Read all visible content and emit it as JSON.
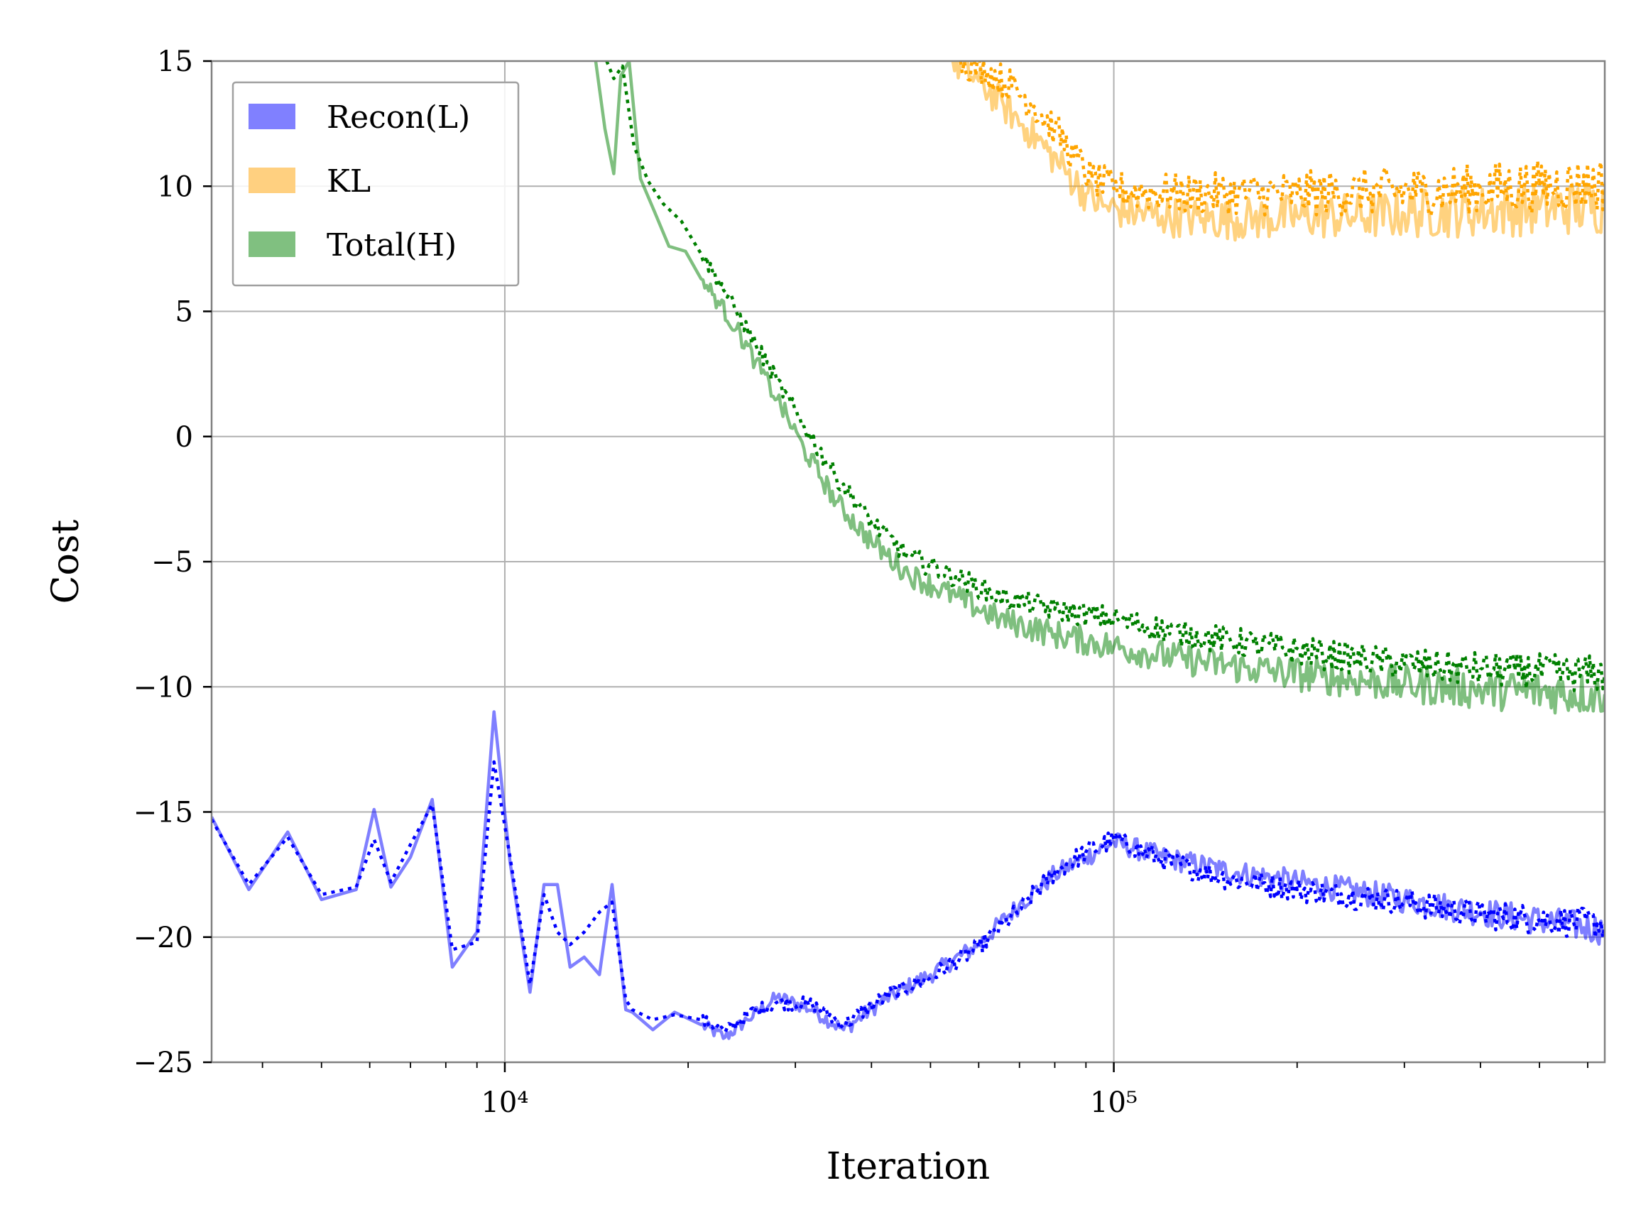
{
  "chart_data": {
    "type": "line",
    "title": "",
    "xlabel": "Iteration",
    "ylabel": "Cost",
    "xscale": "log",
    "xlim": [
      3300,
      640000
    ],
    "ylim": [
      -25,
      15
    ],
    "yticks": [
      15,
      10,
      5,
      0,
      -5,
      -10,
      -15,
      -20,
      -25
    ],
    "ytick_labels": [
      "15",
      "10",
      "5",
      "0",
      "−5",
      "−10",
      "−15",
      "−20",
      "−25"
    ],
    "xticks_major": [
      10000,
      100000
    ],
    "xtick_labels": [
      "10⁴",
      "10⁵"
    ],
    "grid": true,
    "legend_position": "top-left",
    "colors": {
      "recon": "#0000ff",
      "kl": "#ffa500",
      "total": "#008000",
      "grid": "#b0b0b0",
      "frame": "#808080"
    },
    "legend": [
      {
        "label": "Recon(L)",
        "color": "#8080ff"
      },
      {
        "label": "KL",
        "color": "#ffd080"
      },
      {
        "label": "Total(H)",
        "color": "#80c080"
      }
    ],
    "series": [
      {
        "name": "Recon(L) solid",
        "color": "#0000ff",
        "opacity": 0.5,
        "style": "solid",
        "noise": 0.25,
        "x": [
          3300,
          3800,
          4400,
          5000,
          5700,
          6100,
          6500,
          7000,
          7600,
          8200,
          9000,
          9600,
          10200,
          11000,
          11600,
          12200,
          12800,
          13500,
          14300,
          15000,
          15800,
          16200,
          17500,
          19000,
          21000,
          23000,
          25000,
          28000,
          32000,
          36000,
          42000,
          50000,
          60000,
          70000,
          80000,
          90000,
          100000,
          120000,
          150000,
          200000,
          300000,
          400000,
          640000
        ],
        "y": [
          -15.2,
          -18.1,
          -15.8,
          -18.5,
          -18.1,
          -14.9,
          -18.0,
          -16.8,
          -14.5,
          -21.2,
          -19.8,
          -11.0,
          -17.0,
          -22.2,
          -17.9,
          -17.9,
          -21.2,
          -20.8,
          -21.5,
          -17.9,
          -22.9,
          -23.0,
          -23.7,
          -23.0,
          -23.5,
          -24.0,
          -23.3,
          -22.4,
          -22.9,
          -23.7,
          -22.5,
          -21.5,
          -20.3,
          -18.7,
          -17.5,
          -16.8,
          -16.2,
          -16.8,
          -17.3,
          -17.8,
          -18.5,
          -19.0,
          -19.7
        ]
      },
      {
        "name": "Recon(L) dotted",
        "color": "#0000ff",
        "opacity": 1.0,
        "style": "dotted",
        "noise": 0.25,
        "x": [
          3300,
          3800,
          4400,
          5000,
          5700,
          6100,
          6500,
          7000,
          7600,
          8200,
          9000,
          9600,
          10200,
          11000,
          11600,
          12200,
          12800,
          13500,
          14300,
          15000,
          15800,
          16200,
          17500,
          19000,
          21000,
          23000,
          25000,
          28000,
          32000,
          36000,
          42000,
          50000,
          60000,
          70000,
          80000,
          90000,
          100000,
          120000,
          150000,
          200000,
          300000,
          400000,
          640000
        ],
        "y": [
          -15.3,
          -17.9,
          -16.0,
          -18.3,
          -18.0,
          -16.1,
          -17.8,
          -16.3,
          -14.7,
          -20.5,
          -20.2,
          -13.0,
          -16.8,
          -21.9,
          -18.3,
          -19.8,
          -20.3,
          -19.8,
          -19.0,
          -18.6,
          -22.5,
          -22.9,
          -23.3,
          -23.1,
          -23.3,
          -23.8,
          -23.1,
          -22.6,
          -22.7,
          -23.5,
          -22.4,
          -21.6,
          -20.4,
          -18.9,
          -17.4,
          -16.6,
          -16.1,
          -16.9,
          -17.6,
          -18.1,
          -18.6,
          -19.1,
          -19.5
        ]
      },
      {
        "name": "KL solid",
        "color": "#ffa500",
        "opacity": 0.5,
        "style": "solid",
        "noise": 0.45,
        "x": [
          54000,
          60000,
          66000,
          72000,
          78000,
          84000,
          90000,
          96000,
          105000,
          120000,
          140000,
          170000,
          200000,
          250000,
          300000,
          400000,
          500000,
          640000
        ],
        "y": [
          15.0,
          14.2,
          13.2,
          12.3,
          11.4,
          10.5,
          9.7,
          9.2,
          9.0,
          8.8,
          8.7,
          8.7,
          8.8,
          8.8,
          8.9,
          9.0,
          9.1,
          9.2
        ]
      },
      {
        "name": "KL dotted",
        "color": "#ffa500",
        "opacity": 1.0,
        "style": "dotted",
        "noise": 0.45,
        "x": [
          56000,
          62000,
          68000,
          74000,
          80000,
          86000,
          92000,
          100000,
          110000,
          130000,
          160000,
          200000,
          260000,
          320000,
          400000,
          500000,
          640000
        ],
        "y": [
          15.0,
          14.6,
          14.0,
          13.2,
          12.3,
          11.2,
          10.3,
          9.9,
          9.8,
          9.7,
          9.7,
          9.7,
          9.8,
          9.8,
          9.9,
          10.0,
          10.1
        ]
      },
      {
        "name": "Total(H) solid",
        "color": "#008000",
        "opacity": 0.5,
        "style": "solid",
        "noise": 0.35,
        "x": [
          14100,
          14600,
          15100,
          15500,
          16000,
          16700,
          17600,
          18600,
          19800,
          21000,
          22400,
          24000,
          25800,
          28000,
          31000,
          35000,
          40000,
          46000,
          55000,
          65000,
          80000,
          100000,
          130000,
          170000,
          220000,
          300000,
          400000,
          640000
        ],
        "y": [
          15.0,
          12.3,
          10.5,
          14.4,
          15.0,
          10.3,
          9.0,
          7.6,
          7.4,
          6.3,
          5.4,
          4.3,
          3.0,
          1.5,
          -0.5,
          -2.6,
          -4.2,
          -5.5,
          -6.4,
          -7.3,
          -7.9,
          -8.4,
          -8.9,
          -9.3,
          -9.6,
          -9.9,
          -10.1,
          -10.3
        ]
      },
      {
        "name": "Total(H) dotted",
        "color": "#008000",
        "opacity": 1.0,
        "style": "dotted",
        "noise": 0.3,
        "x": [
          14700,
          15100,
          15600,
          16300,
          17200,
          18200,
          19500,
          21000,
          22400,
          24000,
          25800,
          28000,
          31000,
          35000,
          40000,
          46000,
          55000,
          65000,
          80000,
          100000,
          130000,
          170000,
          220000,
          300000,
          400000,
          640000
        ],
        "y": [
          15.0,
          14.3,
          14.8,
          11.6,
          10.2,
          9.3,
          8.6,
          7.3,
          6.3,
          5.0,
          3.7,
          2.2,
          0.4,
          -1.6,
          -3.4,
          -4.8,
          -5.6,
          -6.4,
          -6.9,
          -7.3,
          -7.9,
          -8.3,
          -8.7,
          -9.1,
          -9.3,
          -9.5
        ]
      }
    ]
  }
}
